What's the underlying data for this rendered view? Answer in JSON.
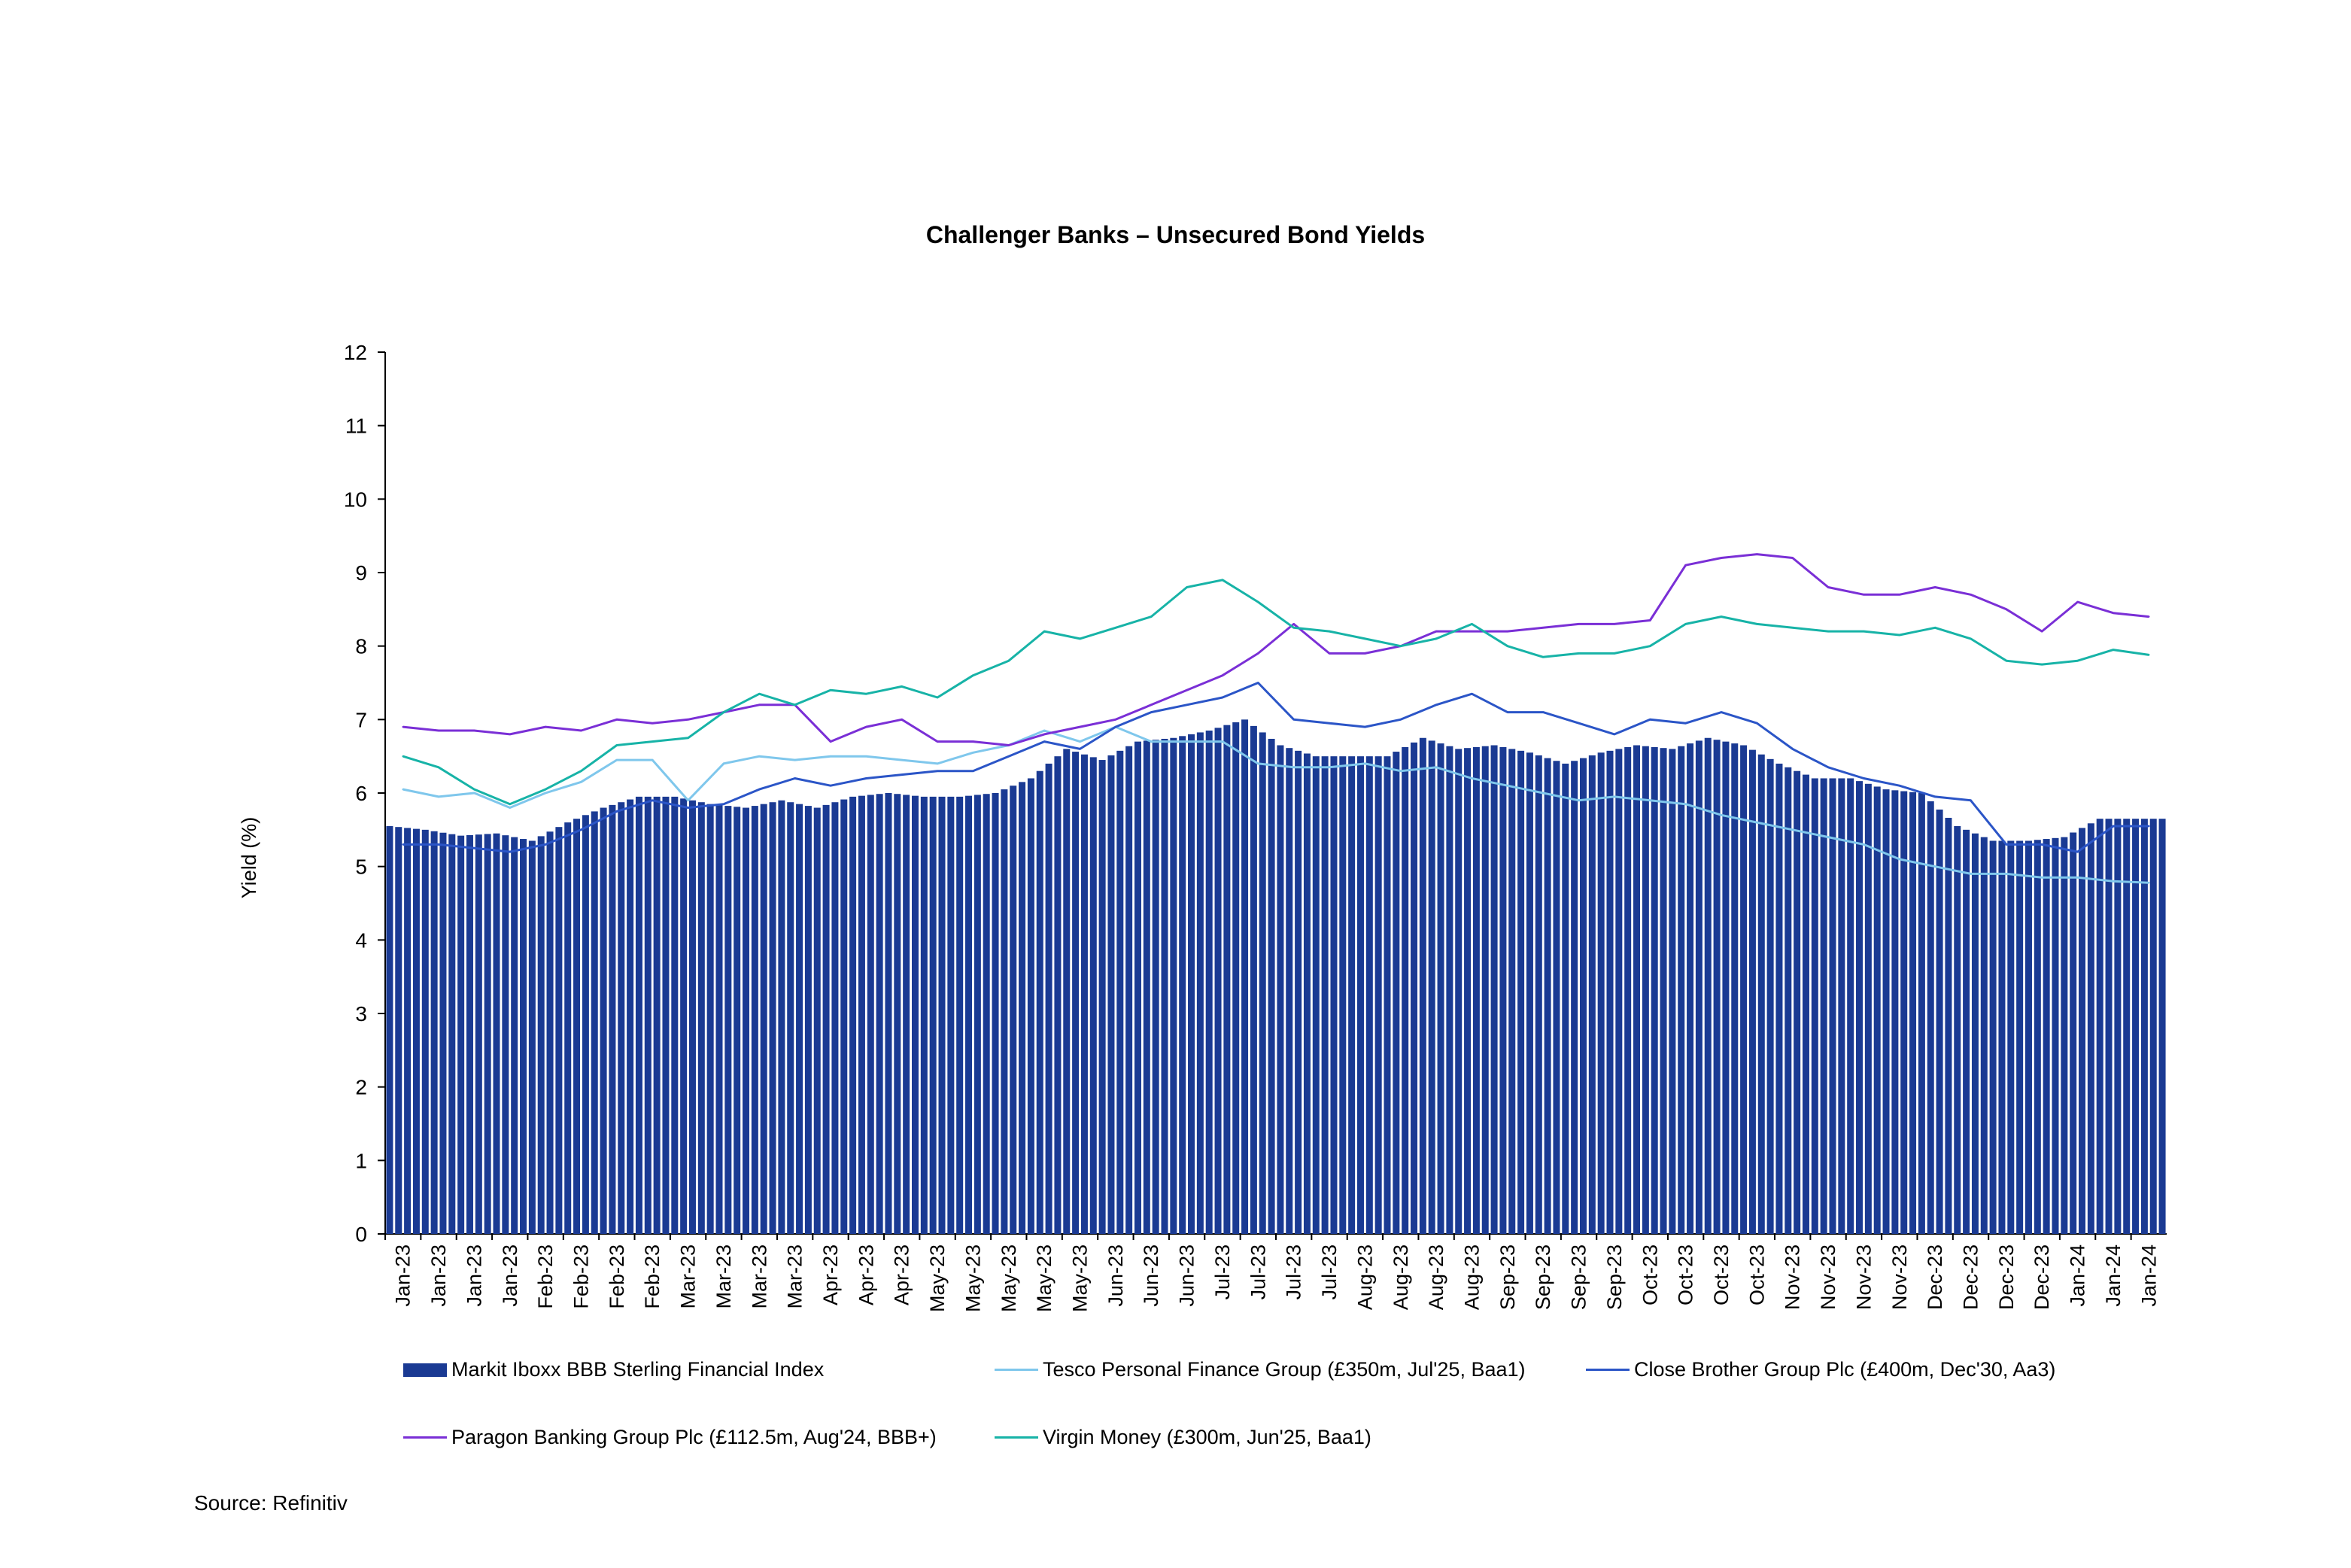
{
  "chart_data": {
    "type": "bar",
    "title": "Challenger Banks – Unsecured Bond Yields",
    "xlabel": "",
    "ylabel": "Yield (%)",
    "ylim": [
      0,
      12
    ],
    "yticks": [
      "0",
      "1",
      "2",
      "3",
      "4",
      "5",
      "6",
      "7",
      "8",
      "9",
      "10",
      "11",
      "12"
    ],
    "categories": [
      "Jan-23",
      "Jan-23",
      "Jan-23",
      "Jan-23",
      "Feb-23",
      "Feb-23",
      "Feb-23",
      "Feb-23",
      "Mar-23",
      "Mar-23",
      "Mar-23",
      "Mar-23",
      "Apr-23",
      "Apr-23",
      "Apr-23",
      "May-23",
      "May-23",
      "May-23",
      "May-23",
      "May-23",
      "Jun-23",
      "Jun-23",
      "Jun-23",
      "Jul-23",
      "Jul-23",
      "Jul-23",
      "Jul-23",
      "Aug-23",
      "Aug-23",
      "Aug-23",
      "Aug-23",
      "Sep-23",
      "Sep-23",
      "Sep-23",
      "Sep-23",
      "Oct-23",
      "Oct-23",
      "Oct-23",
      "Oct-23",
      "Nov-23",
      "Nov-23",
      "Nov-23",
      "Nov-23",
      "Dec-23",
      "Dec-23",
      "Dec-23",
      "Dec-23",
      "Jan-24",
      "Jan-24",
      "Jan-24"
    ],
    "series": [
      {
        "name": "Markit Iboxx BBB Sterling Financial Index",
        "kind": "bar",
        "color": "#1a3a93",
        "values": [
          5.55,
          5.5,
          5.42,
          5.45,
          5.35,
          5.6,
          5.8,
          5.95,
          5.95,
          5.85,
          5.8,
          5.9,
          5.8,
          5.95,
          6.0,
          5.95,
          5.95,
          6.0,
          6.2,
          6.6,
          6.45,
          6.7,
          6.75,
          6.85,
          7.0,
          6.65,
          6.5,
          6.5,
          6.5,
          6.75,
          6.6,
          6.65,
          6.55,
          6.4,
          6.55,
          6.65,
          6.6,
          6.75,
          6.65,
          6.4,
          6.2,
          6.2,
          6.05,
          6.0,
          5.55,
          5.35,
          5.35,
          5.4,
          5.65,
          5.65
        ]
      },
      {
        "name": "Tesco Personal Finance Group (£350m, Jul'25, Baa1)",
        "kind": "line",
        "color": "#7fc7ec",
        "values": [
          6.05,
          5.95,
          6.0,
          5.8,
          6.0,
          6.15,
          6.45,
          6.45,
          5.9,
          6.4,
          6.5,
          6.45,
          6.5,
          6.5,
          6.45,
          6.4,
          6.55,
          6.65,
          6.85,
          6.7,
          6.9,
          6.7,
          6.7,
          6.7,
          6.4,
          6.35,
          6.35,
          6.4,
          6.3,
          6.35,
          6.2,
          6.1,
          6.0,
          5.9,
          5.95,
          5.9,
          5.85,
          5.7,
          5.6,
          5.5,
          5.4,
          5.3,
          5.1,
          5.0,
          4.9,
          4.9,
          4.85,
          4.85,
          4.8,
          4.78
        ]
      },
      {
        "name": "Close Brother Group Plc (£400m, Dec'30, Aa3)",
        "kind": "line",
        "color": "#2b55c7",
        "values": [
          5.3,
          5.3,
          5.25,
          5.2,
          5.3,
          5.5,
          5.75,
          5.9,
          5.8,
          5.85,
          6.05,
          6.2,
          6.1,
          6.2,
          6.25,
          6.3,
          6.3,
          6.5,
          6.7,
          6.6,
          6.9,
          7.1,
          7.2,
          7.3,
          7.5,
          7.0,
          6.95,
          6.9,
          7.0,
          7.2,
          7.35,
          7.1,
          7.1,
          6.95,
          6.8,
          7.0,
          6.95,
          7.1,
          6.95,
          6.6,
          6.35,
          6.2,
          6.1,
          5.95,
          5.9,
          5.3,
          5.3,
          5.2,
          5.55,
          5.55
        ]
      },
      {
        "name": "Paragon Banking Group Plc (£112.5m, Aug'24, BBB+)",
        "kind": "line",
        "color": "#7a2fd6",
        "values": [
          6.9,
          6.85,
          6.85,
          6.8,
          6.9,
          6.85,
          7.0,
          6.95,
          7.0,
          7.1,
          7.2,
          7.2,
          6.7,
          6.9,
          7.0,
          6.7,
          6.7,
          6.65,
          6.8,
          6.9,
          7.0,
          7.2,
          7.4,
          7.6,
          7.9,
          8.3,
          7.9,
          7.9,
          8.0,
          8.2,
          8.2,
          8.2,
          8.25,
          8.3,
          8.3,
          8.35,
          9.1,
          9.2,
          9.25,
          9.2,
          8.8,
          8.7,
          8.7,
          8.8,
          8.7,
          8.5,
          8.2,
          8.6,
          8.45,
          8.4
        ]
      },
      {
        "name": "Virgin Money (£300m, Jun'25, Baa1)",
        "kind": "line",
        "color": "#17b3a7",
        "values": [
          6.5,
          6.35,
          6.05,
          5.85,
          6.05,
          6.3,
          6.65,
          6.7,
          6.75,
          7.1,
          7.35,
          7.2,
          7.4,
          7.35,
          7.45,
          7.3,
          7.6,
          7.8,
          8.2,
          8.1,
          8.25,
          8.4,
          8.8,
          8.9,
          8.6,
          8.25,
          8.2,
          8.1,
          8.0,
          8.1,
          8.3,
          8.0,
          7.85,
          7.9,
          7.9,
          8.0,
          8.3,
          8.4,
          8.3,
          8.25,
          8.2,
          8.2,
          8.15,
          8.25,
          8.1,
          7.8,
          7.75,
          7.8,
          7.95,
          7.88
        ]
      }
    ],
    "legend_position": "bottom"
  },
  "source_text": "Source: Refinitiv"
}
